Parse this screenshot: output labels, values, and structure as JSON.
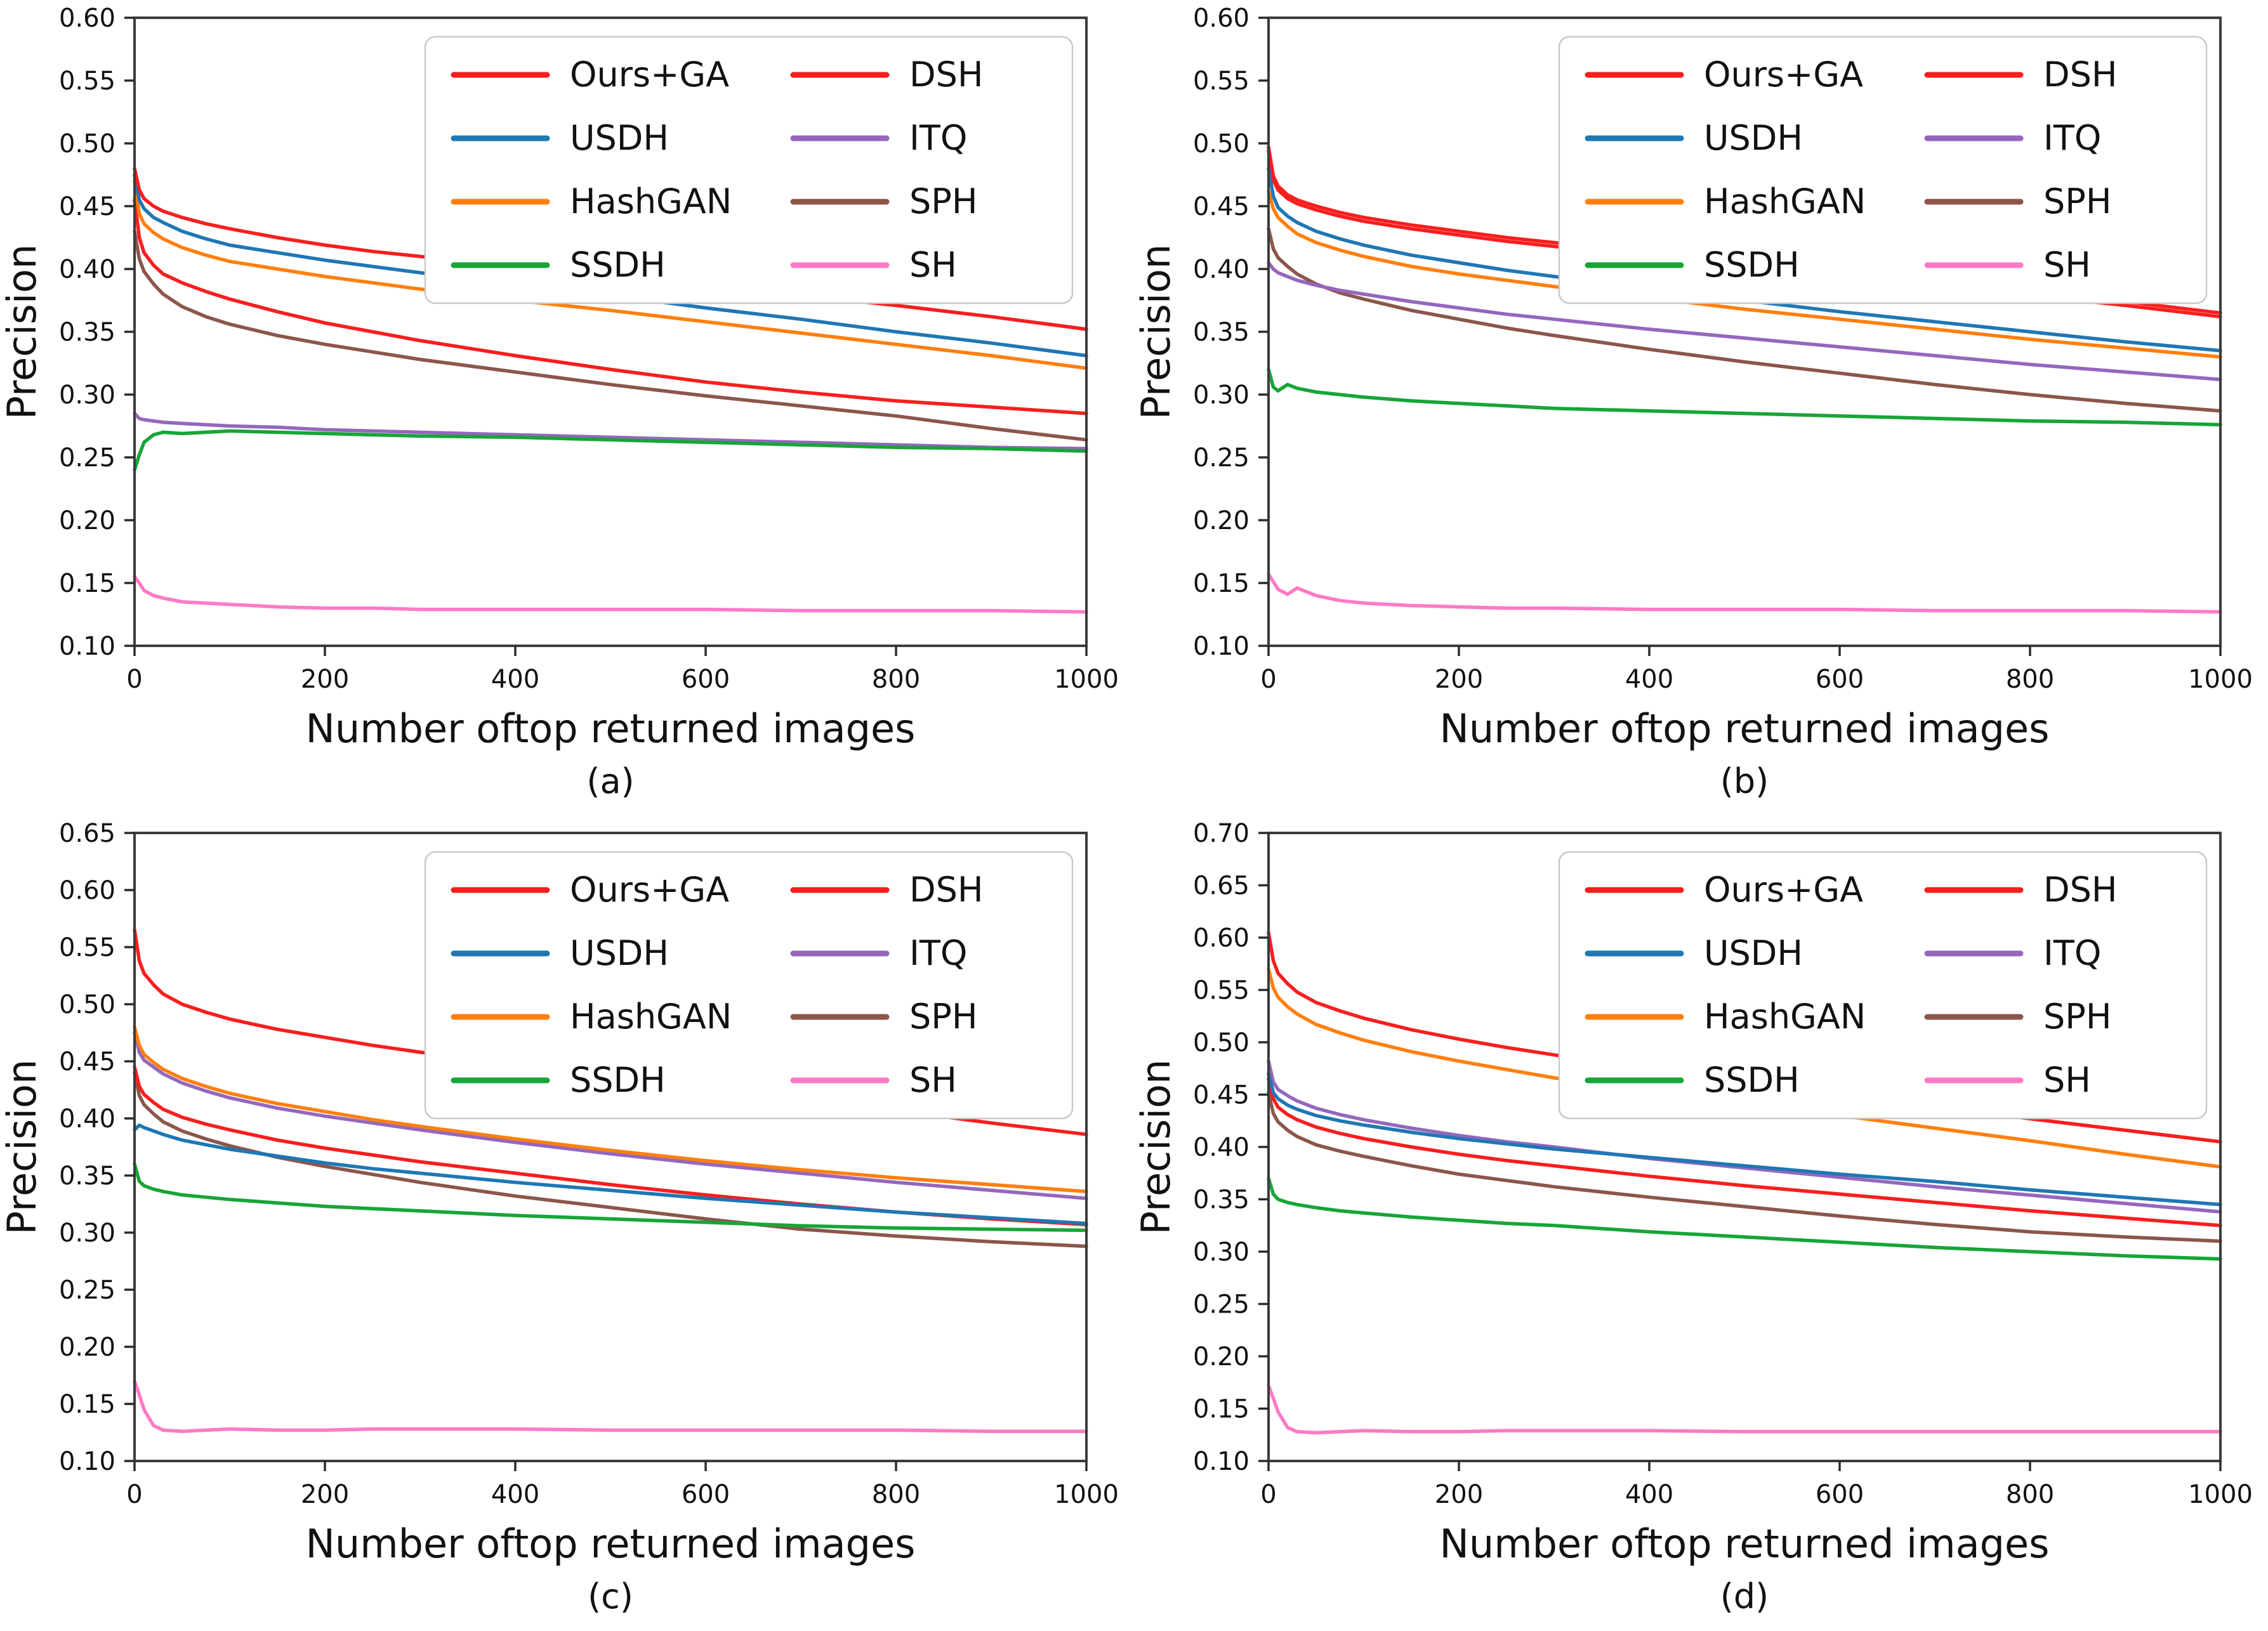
{
  "figure": {
    "background": "#ffffff",
    "frame_color": "#3c3c3c",
    "tick_color": "#2b2b2b",
    "text_color": "#111111",
    "legend_border_color": "#c9c9c9",
    "x_axis_label": "Number oftop returned images",
    "y_axis_label": "Precision",
    "legend": {
      "columns": [
        [
          "Ours+GA",
          "USDH",
          "HashGAN",
          "SSDH"
        ],
        [
          "DSH",
          "ITQ",
          "SPH",
          "SH"
        ]
      ]
    },
    "series_colors": {
      "Ours+GA": "#f91e1e",
      "USDH": "#1f77b4",
      "HashGAN": "#ff7f0e",
      "SSDH": "#17a538",
      "DSH": "#f91e1e",
      "ITQ": "#9467bd",
      "SPH": "#8c564b",
      "SH": "#ff7ac5"
    }
  },
  "chart_data": [
    {
      "type": "line",
      "caption": "(a)",
      "xlabel": "Number oftop returned images",
      "ylabel": "Precision",
      "xlim": [
        0,
        1000
      ],
      "ylim": [
        0.1,
        0.6
      ],
      "xticks": [
        0,
        200,
        400,
        600,
        800,
        1000
      ],
      "yticks": [
        0.1,
        0.15,
        0.2,
        0.25,
        0.3,
        0.35,
        0.4,
        0.45,
        0.5,
        0.55,
        0.6
      ],
      "grid": false,
      "legend_position": "upper right",
      "x": [
        0,
        5,
        10,
        20,
        30,
        50,
        75,
        100,
        150,
        200,
        250,
        300,
        400,
        500,
        600,
        700,
        800,
        900,
        1000
      ],
      "series": [
        {
          "name": "Ours+GA",
          "values": [
            0.48,
            0.463,
            0.456,
            0.45,
            0.446,
            0.441,
            0.436,
            0.432,
            0.425,
            0.419,
            0.414,
            0.41,
            0.401,
            0.394,
            0.387,
            0.379,
            0.371,
            0.362,
            0.352
          ]
        },
        {
          "name": "USDH",
          "values": [
            0.475,
            0.455,
            0.448,
            0.441,
            0.437,
            0.43,
            0.424,
            0.419,
            0.413,
            0.407,
            0.402,
            0.397,
            0.388,
            0.379,
            0.369,
            0.36,
            0.35,
            0.341,
            0.331
          ]
        },
        {
          "name": "HashGAN",
          "values": [
            0.47,
            0.444,
            0.436,
            0.429,
            0.424,
            0.417,
            0.411,
            0.406,
            0.4,
            0.394,
            0.389,
            0.384,
            0.375,
            0.367,
            0.358,
            0.349,
            0.34,
            0.331,
            0.321
          ]
        },
        {
          "name": "SSDH",
          "values": [
            0.24,
            0.252,
            0.262,
            0.268,
            0.27,
            0.269,
            0.27,
            0.271,
            0.27,
            0.269,
            0.268,
            0.267,
            0.266,
            0.264,
            0.262,
            0.26,
            0.258,
            0.257,
            0.255
          ]
        },
        {
          "name": "DSH",
          "values": [
            0.455,
            0.425,
            0.413,
            0.403,
            0.396,
            0.389,
            0.382,
            0.376,
            0.366,
            0.357,
            0.35,
            0.343,
            0.331,
            0.32,
            0.31,
            0.302,
            0.295,
            0.29,
            0.285
          ]
        },
        {
          "name": "ITQ",
          "values": [
            0.285,
            0.281,
            0.28,
            0.279,
            0.278,
            0.277,
            0.276,
            0.275,
            0.274,
            0.272,
            0.271,
            0.27,
            0.268,
            0.266,
            0.264,
            0.262,
            0.26,
            0.258,
            0.257
          ]
        },
        {
          "name": "SPH",
          "values": [
            0.43,
            0.408,
            0.398,
            0.388,
            0.38,
            0.37,
            0.362,
            0.356,
            0.347,
            0.34,
            0.334,
            0.328,
            0.318,
            0.308,
            0.299,
            0.291,
            0.283,
            0.273,
            0.264
          ]
        },
        {
          "name": "SH",
          "values": [
            0.155,
            0.15,
            0.144,
            0.14,
            0.138,
            0.135,
            0.134,
            0.133,
            0.131,
            0.13,
            0.13,
            0.129,
            0.129,
            0.129,
            0.129,
            0.128,
            0.128,
            0.128,
            0.127
          ]
        }
      ]
    },
    {
      "type": "line",
      "caption": "(b)",
      "xlabel": "Number oftop returned images",
      "ylabel": "Precision",
      "xlim": [
        0,
        1000
      ],
      "ylim": [
        0.1,
        0.6
      ],
      "xticks": [
        0,
        200,
        400,
        600,
        800,
        1000
      ],
      "yticks": [
        0.1,
        0.15,
        0.2,
        0.25,
        0.3,
        0.35,
        0.4,
        0.45,
        0.5,
        0.55,
        0.6
      ],
      "grid": false,
      "legend_position": "upper right",
      "x": [
        0,
        5,
        10,
        20,
        30,
        50,
        75,
        100,
        150,
        200,
        250,
        300,
        400,
        500,
        600,
        700,
        800,
        900,
        1000
      ],
      "series": [
        {
          "name": "Ours+GA",
          "values": [
            0.497,
            0.474,
            0.466,
            0.459,
            0.455,
            0.45,
            0.445,
            0.441,
            0.435,
            0.43,
            0.425,
            0.421,
            0.413,
            0.405,
            0.398,
            0.39,
            0.382,
            0.374,
            0.365
          ]
        },
        {
          "name": "USDH",
          "values": [
            0.48,
            0.458,
            0.449,
            0.442,
            0.437,
            0.43,
            0.424,
            0.419,
            0.411,
            0.405,
            0.399,
            0.394,
            0.384,
            0.375,
            0.366,
            0.358,
            0.35,
            0.342,
            0.335
          ]
        },
        {
          "name": "HashGAN",
          "values": [
            0.462,
            0.448,
            0.441,
            0.434,
            0.428,
            0.421,
            0.415,
            0.41,
            0.402,
            0.396,
            0.391,
            0.386,
            0.377,
            0.368,
            0.36,
            0.352,
            0.344,
            0.337,
            0.33
          ]
        },
        {
          "name": "SSDH",
          "values": [
            0.32,
            0.306,
            0.303,
            0.308,
            0.305,
            0.302,
            0.3,
            0.298,
            0.295,
            0.293,
            0.291,
            0.289,
            0.287,
            0.285,
            0.283,
            0.281,
            0.279,
            0.278,
            0.276
          ]
        },
        {
          "name": "DSH",
          "values": [
            0.494,
            0.471,
            0.463,
            0.456,
            0.452,
            0.447,
            0.442,
            0.438,
            0.432,
            0.427,
            0.422,
            0.418,
            0.41,
            0.402,
            0.395,
            0.387,
            0.379,
            0.371,
            0.362
          ]
        },
        {
          "name": "ITQ",
          "values": [
            0.405,
            0.4,
            0.397,
            0.394,
            0.391,
            0.387,
            0.383,
            0.38,
            0.374,
            0.369,
            0.364,
            0.36,
            0.352,
            0.345,
            0.338,
            0.331,
            0.324,
            0.318,
            0.312
          ]
        },
        {
          "name": "SPH",
          "values": [
            0.432,
            0.416,
            0.409,
            0.402,
            0.396,
            0.388,
            0.381,
            0.376,
            0.367,
            0.36,
            0.353,
            0.347,
            0.336,
            0.326,
            0.317,
            0.308,
            0.3,
            0.293,
            0.287
          ]
        },
        {
          "name": "SH",
          "values": [
            0.157,
            0.151,
            0.145,
            0.141,
            0.146,
            0.14,
            0.136,
            0.134,
            0.132,
            0.131,
            0.13,
            0.13,
            0.129,
            0.129,
            0.129,
            0.128,
            0.128,
            0.128,
            0.127
          ]
        }
      ]
    },
    {
      "type": "line",
      "caption": "(c)",
      "xlabel": "Number oftop returned images",
      "ylabel": "Precision",
      "xlim": [
        0,
        1000
      ],
      "ylim": [
        0.1,
        0.65
      ],
      "xticks": [
        0,
        200,
        400,
        600,
        800,
        1000
      ],
      "yticks": [
        0.1,
        0.15,
        0.2,
        0.25,
        0.3,
        0.35,
        0.4,
        0.45,
        0.5,
        0.55,
        0.6,
        0.65
      ],
      "grid": false,
      "legend_position": "upper right",
      "x": [
        0,
        5,
        10,
        20,
        30,
        50,
        75,
        100,
        150,
        200,
        250,
        300,
        400,
        500,
        600,
        700,
        800,
        900,
        1000
      ],
      "series": [
        {
          "name": "Ours+GA",
          "values": [
            0.565,
            0.538,
            0.527,
            0.517,
            0.509,
            0.5,
            0.493,
            0.487,
            0.478,
            0.471,
            0.464,
            0.458,
            0.447,
            0.437,
            0.427,
            0.417,
            0.407,
            0.396,
            0.386
          ]
        },
        {
          "name": "USDH",
          "values": [
            0.39,
            0.394,
            0.392,
            0.389,
            0.386,
            0.381,
            0.377,
            0.373,
            0.367,
            0.361,
            0.356,
            0.352,
            0.344,
            0.337,
            0.33,
            0.324,
            0.318,
            0.313,
            0.308
          ]
        },
        {
          "name": "HashGAN",
          "values": [
            0.48,
            0.464,
            0.456,
            0.449,
            0.443,
            0.435,
            0.428,
            0.422,
            0.413,
            0.406,
            0.399,
            0.393,
            0.382,
            0.372,
            0.363,
            0.355,
            0.348,
            0.342,
            0.336
          ]
        },
        {
          "name": "SSDH",
          "values": [
            0.36,
            0.345,
            0.341,
            0.338,
            0.336,
            0.333,
            0.331,
            0.329,
            0.326,
            0.323,
            0.321,
            0.319,
            0.315,
            0.312,
            0.309,
            0.306,
            0.304,
            0.303,
            0.302
          ]
        },
        {
          "name": "DSH",
          "values": [
            0.445,
            0.428,
            0.421,
            0.414,
            0.408,
            0.401,
            0.395,
            0.39,
            0.381,
            0.374,
            0.368,
            0.362,
            0.352,
            0.342,
            0.333,
            0.325,
            0.318,
            0.312,
            0.307
          ]
        },
        {
          "name": "ITQ",
          "values": [
            0.475,
            0.458,
            0.451,
            0.445,
            0.439,
            0.431,
            0.424,
            0.418,
            0.409,
            0.402,
            0.396,
            0.39,
            0.379,
            0.369,
            0.36,
            0.352,
            0.344,
            0.337,
            0.33
          ]
        },
        {
          "name": "SPH",
          "values": [
            0.44,
            0.42,
            0.412,
            0.404,
            0.397,
            0.389,
            0.382,
            0.376,
            0.366,
            0.358,
            0.351,
            0.344,
            0.332,
            0.322,
            0.312,
            0.303,
            0.297,
            0.292,
            0.288
          ]
        },
        {
          "name": "SH",
          "values": [
            0.17,
            0.158,
            0.145,
            0.131,
            0.127,
            0.126,
            0.127,
            0.128,
            0.127,
            0.127,
            0.128,
            0.128,
            0.128,
            0.127,
            0.127,
            0.127,
            0.127,
            0.126,
            0.126
          ]
        }
      ]
    },
    {
      "type": "line",
      "caption": "(d)",
      "xlabel": "Number oftop returned images",
      "ylabel": "Precision",
      "xlim": [
        0,
        1000
      ],
      "ylim": [
        0.1,
        0.7
      ],
      "xticks": [
        0,
        200,
        400,
        600,
        800,
        1000
      ],
      "yticks": [
        0.1,
        0.15,
        0.2,
        0.25,
        0.3,
        0.35,
        0.4,
        0.45,
        0.5,
        0.55,
        0.6,
        0.65,
        0.7
      ],
      "grid": false,
      "legend_position": "upper right",
      "x": [
        0,
        5,
        10,
        20,
        30,
        50,
        75,
        100,
        150,
        200,
        250,
        300,
        400,
        500,
        600,
        700,
        800,
        900,
        1000
      ],
      "series": [
        {
          "name": "Ours+GA",
          "values": [
            0.605,
            0.578,
            0.566,
            0.556,
            0.548,
            0.538,
            0.53,
            0.523,
            0.512,
            0.503,
            0.495,
            0.488,
            0.474,
            0.462,
            0.45,
            0.439,
            0.427,
            0.416,
            0.405
          ]
        },
        {
          "name": "USDH",
          "values": [
            0.47,
            0.452,
            0.446,
            0.44,
            0.436,
            0.43,
            0.425,
            0.421,
            0.414,
            0.408,
            0.403,
            0.398,
            0.39,
            0.382,
            0.374,
            0.367,
            0.359,
            0.352,
            0.345
          ]
        },
        {
          "name": "HashGAN",
          "values": [
            0.57,
            0.552,
            0.543,
            0.534,
            0.527,
            0.517,
            0.509,
            0.502,
            0.491,
            0.482,
            0.474,
            0.466,
            0.455,
            0.442,
            0.43,
            0.418,
            0.406,
            0.393,
            0.381
          ]
        },
        {
          "name": "SSDH",
          "values": [
            0.37,
            0.355,
            0.35,
            0.347,
            0.345,
            0.342,
            0.339,
            0.337,
            0.333,
            0.33,
            0.327,
            0.325,
            0.319,
            0.314,
            0.309,
            0.304,
            0.3,
            0.296,
            0.293
          ]
        },
        {
          "name": "DSH",
          "values": [
            0.465,
            0.446,
            0.438,
            0.431,
            0.426,
            0.419,
            0.413,
            0.408,
            0.4,
            0.393,
            0.387,
            0.382,
            0.372,
            0.363,
            0.355,
            0.347,
            0.339,
            0.332,
            0.325
          ]
        },
        {
          "name": "ITQ",
          "values": [
            0.482,
            0.462,
            0.455,
            0.449,
            0.444,
            0.437,
            0.431,
            0.426,
            0.418,
            0.411,
            0.405,
            0.4,
            0.389,
            0.38,
            0.371,
            0.362,
            0.354,
            0.346,
            0.338
          ]
        },
        {
          "name": "SPH",
          "values": [
            0.452,
            0.432,
            0.424,
            0.416,
            0.41,
            0.402,
            0.396,
            0.391,
            0.382,
            0.374,
            0.368,
            0.362,
            0.352,
            0.343,
            0.334,
            0.326,
            0.319,
            0.314,
            0.31
          ]
        },
        {
          "name": "SH",
          "values": [
            0.172,
            0.16,
            0.147,
            0.132,
            0.128,
            0.127,
            0.128,
            0.129,
            0.128,
            0.128,
            0.129,
            0.129,
            0.129,
            0.128,
            0.128,
            0.128,
            0.128,
            0.128,
            0.128
          ]
        }
      ]
    }
  ]
}
